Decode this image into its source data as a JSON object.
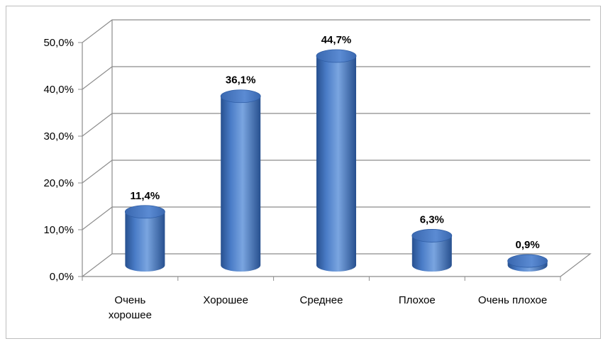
{
  "chart_data": {
    "type": "bar",
    "style": "3d-cylinder",
    "categories": [
      "Очень хорошее",
      "Хорошее",
      "Среднее",
      "Плохое",
      "Очень плохое"
    ],
    "category_lines": [
      [
        "Очень",
        "хорошее"
      ],
      [
        "Хорошее"
      ],
      [
        "Среднее"
      ],
      [
        "Плохое"
      ],
      [
        "Очень плохое"
      ]
    ],
    "values": [
      11.4,
      36.1,
      44.7,
      6.3,
      0.9
    ],
    "data_labels": [
      "11,4%",
      "36,1%",
      "44,7%",
      "6,3%",
      "0,9%"
    ],
    "ylim": [
      0,
      50
    ],
    "yticks": [
      0,
      10,
      20,
      30,
      40,
      50
    ],
    "ytick_labels": [
      "0,0%",
      "10,0%",
      "20,0%",
      "30,0%",
      "40,0%",
      "50,0%"
    ],
    "grid": true,
    "legend": false,
    "title": "",
    "xlabel": "",
    "ylabel": "",
    "colors": {
      "bar": "#4a7cc7",
      "bar_dark": "#27508f",
      "bar_light": "#7aa5e0",
      "grid": "#8c8c8c"
    }
  }
}
